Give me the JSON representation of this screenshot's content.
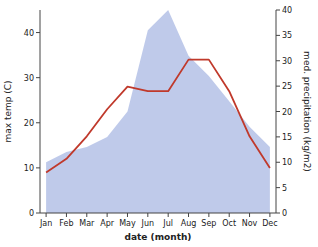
{
  "chart_data": {
    "type": "line",
    "xlabel": "date (month)",
    "ylabel": "max temp (C)",
    "y2label": "med. precipitation (kg/m2)",
    "categories": [
      "Jan",
      "Feb",
      "Mar",
      "Apr",
      "May",
      "Jun",
      "Jul",
      "Aug",
      "Sep",
      "Oct",
      "Nov",
      "Dec"
    ],
    "series": [
      {
        "type": "area",
        "axis": "y2",
        "color": "#b8c4e8",
        "values": [
          10,
          12,
          13,
          15,
          20,
          36,
          40,
          31,
          27,
          22,
          17,
          13
        ]
      },
      {
        "type": "line",
        "color": "#c0392b",
        "values": [
          9,
          12,
          17,
          23,
          28,
          27,
          27,
          34,
          34,
          27,
          17,
          10
        ]
      }
    ],
    "ylim": [
      0,
      45
    ],
    "yticks": [
      0,
      10,
      20,
      30,
      40
    ],
    "y2lim": [
      0,
      40
    ],
    "y2ticks": [
      0,
      5,
      10,
      15,
      20,
      25,
      30,
      35,
      40
    ]
  }
}
